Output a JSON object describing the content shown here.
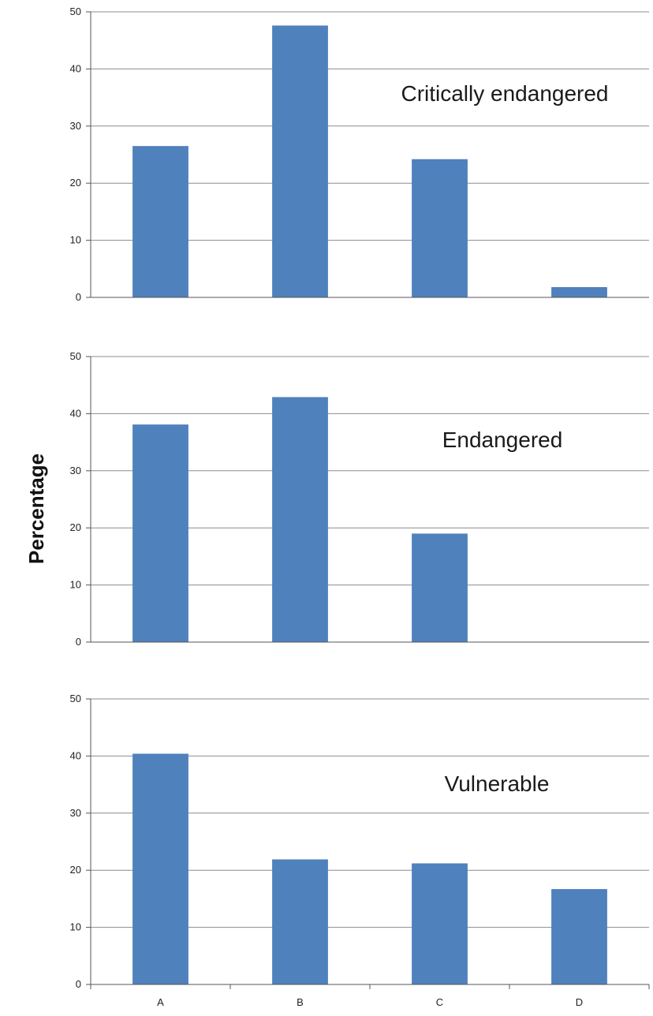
{
  "chart_data": {
    "type": "bar",
    "ylabel": "Percentage",
    "categories": [
      "A",
      "B",
      "C",
      "D"
    ],
    "ylim": [
      0,
      50
    ],
    "yticks": [
      0,
      10,
      20,
      30,
      40,
      50
    ],
    "grid": true,
    "bar_color": "#4f81bd",
    "panels": [
      {
        "title": "Critically endangered",
        "values": [
          26.5,
          47.6,
          24.2,
          1.8
        ],
        "show_categories": false
      },
      {
        "title": "Endangered",
        "values": [
          38.1,
          42.9,
          19.0,
          0
        ],
        "show_categories": false
      },
      {
        "title": "Vulnerable",
        "values": [
          40.4,
          21.9,
          21.2,
          16.7
        ],
        "show_categories": true
      }
    ]
  }
}
